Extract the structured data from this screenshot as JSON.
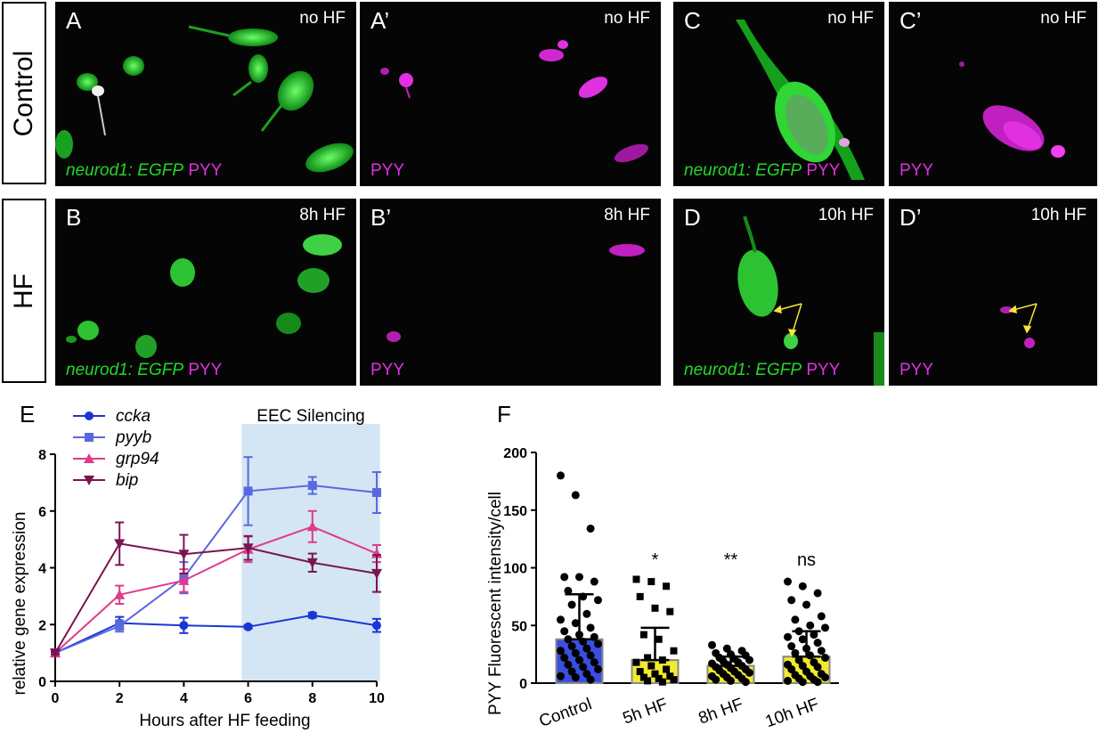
{
  "rows": [
    {
      "label": "Control"
    },
    {
      "label": "HF"
    }
  ],
  "panels": [
    {
      "letter": "A",
      "condition": "no HF",
      "stain_green": "neurod1: EGFP",
      "stain_mag": "PYY"
    },
    {
      "letter": "A’",
      "condition": "no HF",
      "stain_green": "",
      "stain_mag": "PYY"
    },
    {
      "letter": "C",
      "condition": "no HF",
      "stain_green": "neurod1: EGFP",
      "stain_mag": "PYY"
    },
    {
      "letter": "C’",
      "condition": "no HF",
      "stain_green": "",
      "stain_mag": "PYY"
    },
    {
      "letter": "B",
      "condition": "8h HF",
      "stain_green": "neurod1: EGFP",
      "stain_mag": "PYY"
    },
    {
      "letter": "B’",
      "condition": "8h HF",
      "stain_green": "",
      "stain_mag": "PYY"
    },
    {
      "letter": "D",
      "condition": "10h HF",
      "stain_green": "neurod1: EGFP",
      "stain_mag": "PYY"
    },
    {
      "letter": "D’",
      "condition": "10h HF",
      "stain_green": "",
      "stain_mag": "PYY"
    }
  ],
  "colors": {
    "egfp": "#22d62a",
    "pyy": "#e030e0",
    "arrow": "#f5e63a"
  },
  "chart_data": [
    {
      "panel_letter": "E",
      "type": "line",
      "xlabel": "Hours after HF feeding",
      "ylabel": "relative gene expression",
      "xlim": [
        0,
        10
      ],
      "ylim": [
        0,
        8
      ],
      "xticks": [
        0,
        2,
        4,
        6,
        8,
        10
      ],
      "yticks": [
        0,
        2,
        4,
        6,
        8
      ],
      "shaded_region": {
        "label": "EEC Silencing",
        "x_start": 5.8,
        "x_end": 10.1,
        "color": "#d4e6f3"
      },
      "legend_position": "top-left",
      "series": [
        {
          "name": "ccka",
          "color": "#1a35d6",
          "marker": "circle",
          "x": [
            0,
            2,
            4,
            6,
            8,
            10
          ],
          "y": [
            1.0,
            2.05,
            1.97,
            1.92,
            2.33,
            1.97
          ],
          "err": [
            0.05,
            0.22,
            0.27,
            0.06,
            0.09,
            0.23
          ]
        },
        {
          "name": "pyyb",
          "color": "#5a68e0",
          "marker": "square",
          "x": [
            0,
            2,
            4,
            6,
            8,
            10
          ],
          "y": [
            1.0,
            1.95,
            3.65,
            6.7,
            6.9,
            6.65
          ],
          "err": [
            0.05,
            0.2,
            0.55,
            1.2,
            0.3,
            0.72
          ]
        },
        {
          "name": "grp94",
          "color": "#e03a8c",
          "marker": "triangle-up",
          "x": [
            0,
            2,
            4,
            6,
            8,
            10
          ],
          "y": [
            1.0,
            3.05,
            3.55,
            4.65,
            5.45,
            4.5
          ],
          "err": [
            0.05,
            0.32,
            0.4,
            0.45,
            0.55,
            0.3
          ]
        },
        {
          "name": "bip",
          "color": "#7a1450",
          "marker": "triangle-down",
          "x": [
            0,
            2,
            4,
            6,
            8,
            10
          ],
          "y": [
            1.0,
            4.85,
            4.48,
            4.7,
            4.18,
            3.8
          ],
          "err": [
            0.05,
            0.75,
            0.68,
            0.42,
            0.32,
            0.65
          ]
        }
      ]
    },
    {
      "panel_letter": "F",
      "type": "bar",
      "ylabel": "PYY Fluorescent intensity/cell",
      "ylim": [
        0,
        200
      ],
      "yticks": [
        0,
        50,
        100,
        150,
        200
      ],
      "categories": [
        "Control",
        "5h HF",
        "8h HF",
        "10h HF"
      ],
      "values": [
        38,
        20,
        15,
        23
      ],
      "sd_upper": [
        77,
        48,
        23,
        45
      ],
      "significance": [
        "",
        "*",
        "**",
        "ns"
      ],
      "bar_colors": [
        "#3a4fe0",
        "#f2ea30",
        "#f2ea30",
        "#f2ea30"
      ],
      "points": [
        [
          180,
          163,
          134,
          92,
          92,
          88,
          80,
          75,
          72,
          68,
          60,
          55,
          52,
          48,
          45,
          42,
          40,
          38,
          36,
          34,
          32,
          30,
          28,
          26,
          24,
          22,
          20,
          18,
          16,
          14,
          12,
          10,
          8,
          6,
          5,
          3
        ],
        [
          90,
          88,
          84,
          75,
          65,
          62,
          42,
          38,
          28,
          22,
          20,
          18,
          15,
          12,
          10,
          8,
          6,
          5,
          4,
          3,
          2,
          1
        ],
        [
          33,
          30,
          28,
          26,
          25,
          24,
          22,
          21,
          20,
          19,
          18,
          17,
          16,
          15,
          14,
          13,
          12,
          11,
          10,
          9,
          8,
          7,
          6,
          5,
          4,
          3,
          2,
          1
        ],
        [
          88,
          84,
          78,
          72,
          68,
          58,
          55,
          50,
          48,
          45,
          42,
          40,
          38,
          35,
          32,
          30,
          28,
          26,
          24,
          22,
          20,
          18,
          16,
          15,
          14,
          12,
          10,
          8,
          7,
          6,
          5,
          4,
          3,
          2,
          1,
          1
        ]
      ]
    }
  ]
}
